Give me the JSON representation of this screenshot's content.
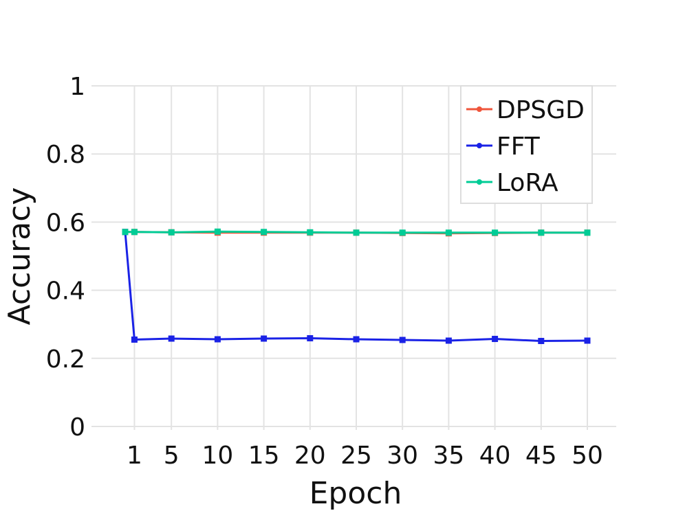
{
  "chart_data": {
    "type": "line",
    "title": "",
    "xlabel": "Epoch",
    "ylabel": "Accuracy",
    "x": [
      0,
      1,
      5,
      10,
      15,
      20,
      25,
      30,
      35,
      40,
      45,
      50
    ],
    "xticks": [
      "1",
      "5",
      "10",
      "15",
      "20",
      "25",
      "30",
      "35",
      "40",
      "45",
      "50"
    ],
    "yticks": [
      "0",
      "0.2",
      "0.4",
      "0.6",
      "0.8",
      "1"
    ],
    "ylim": [
      0,
      1
    ],
    "grid": true,
    "legend_position": "top-right",
    "series": [
      {
        "name": "DPSGD",
        "color": "#ef553b",
        "values": [
          0.571,
          0.571,
          0.57,
          0.569,
          0.569,
          0.569,
          0.569,
          0.568,
          0.567,
          0.568,
          0.569,
          0.569
        ]
      },
      {
        "name": "FFT",
        "color": "#1a22e6",
        "values": [
          0.571,
          0.255,
          0.258,
          0.256,
          0.258,
          0.259,
          0.256,
          0.254,
          0.252,
          0.257,
          0.251,
          0.252
        ]
      },
      {
        "name": "LoRA",
        "color": "#00cc96",
        "values": [
          0.571,
          0.571,
          0.57,
          0.572,
          0.571,
          0.57,
          0.569,
          0.569,
          0.569,
          0.569,
          0.569,
          0.569
        ]
      }
    ]
  }
}
